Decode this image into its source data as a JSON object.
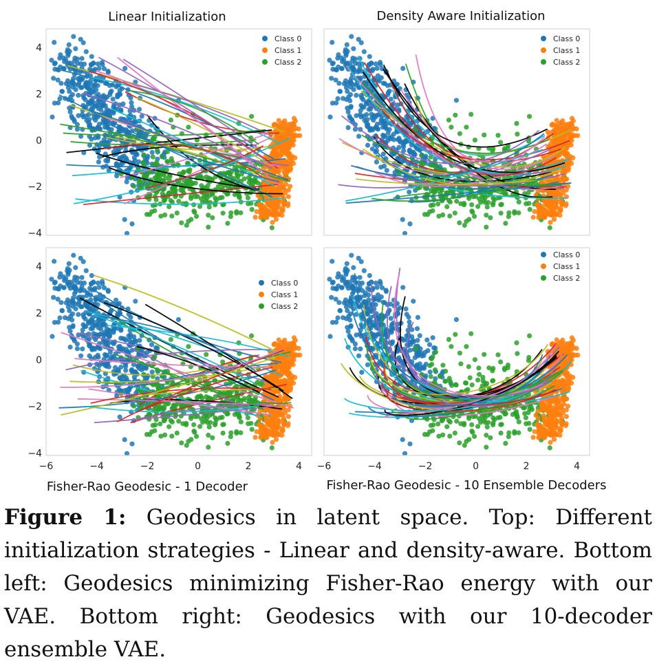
{
  "figure": {
    "panels": [
      {
        "id": "tl",
        "title": "Linear Initialization",
        "bottom_label": ""
      },
      {
        "id": "tr",
        "title": "Density Aware Initialization",
        "bottom_label": ""
      },
      {
        "id": "bl",
        "title": "",
        "bottom_label": "Fisher-Rao Geodesic - 1 Decoder"
      },
      {
        "id": "br",
        "title": "",
        "bottom_label": "Fisher-Rao Geodesic - 10 Ensemble Decoders"
      }
    ],
    "legend": [
      "Class 0",
      "Class 1",
      "Class 2"
    ],
    "y_ticks": [
      "4",
      "2",
      "0",
      "−2",
      "−4"
    ],
    "x_ticks": [
      "−6",
      "−4",
      "−2",
      "0",
      "2",
      "4"
    ]
  },
  "chart_data": {
    "type": "scatter",
    "xlim": [
      -6,
      4.5
    ],
    "ylim": [
      -4.1,
      4.8
    ],
    "grid": false,
    "legend_placement": "top-right",
    "series": [
      {
        "name": "Class 0",
        "color": "#1f77b4",
        "center": [
          -4.2,
          0.3
        ],
        "spread": [
          0.9,
          1.5
        ]
      },
      {
        "name": "Class 1",
        "color": "#ff7f0e",
        "center": [
          3.6,
          -0.8
        ],
        "spread": [
          0.25,
          1.2
        ]
      },
      {
        "name": "Class 2",
        "color": "#2ca02c",
        "center": [
          0.3,
          -2.0
        ],
        "spread": [
          1.4,
          0.7
        ]
      }
    ],
    "geodesic_colors": [
      "#000000",
      "#17becf",
      "#bcbd22",
      "#d62728",
      "#9467bd",
      "#e377c2",
      "#1f77b4",
      "#2ca02c"
    ]
  },
  "caption": {
    "label": "Figure 1:",
    "text": "Geodesics in latent space. Top: Different initialization strategies - Linear and density-aware. Bottom left: Geodesics minimizing Fisher-Rao energy with our VAE. Bottom right: Geodesics with our 10-decoder ensemble VAE."
  }
}
